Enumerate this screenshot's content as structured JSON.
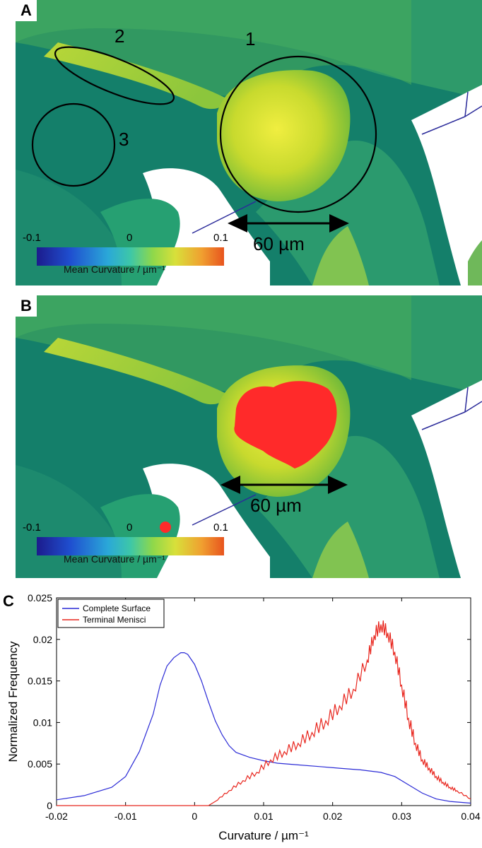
{
  "panel_a": {
    "letter": "A",
    "labels": {
      "one": "1",
      "two": "2",
      "three": "3"
    },
    "scale_bar": "60 µm",
    "colorbar": {
      "min": "-0.1",
      "mid": "0",
      "max": "0.1",
      "title": "Mean Curvature / µm⁻¹"
    }
  },
  "panel_b": {
    "letter": "B",
    "scale_bar": "60 µm",
    "colorbar": {
      "min": "-0.1",
      "mid": "0",
      "max": "0.1",
      "title": "Mean Curvature / µm⁻¹"
    }
  },
  "panel_c": {
    "letter": "C"
  },
  "colors": {
    "complete_surface": "#2b2bd6",
    "terminal_menisci": "#e8261e",
    "meniscus_highlight": "#ff2a2a"
  },
  "chart_data": {
    "type": "line",
    "xlabel": "Curvature / µm⁻¹",
    "ylabel": "Normalized Frequency",
    "xlim": [
      -0.02,
      0.04
    ],
    "ylim": [
      0,
      0.025
    ],
    "xticks": [
      "-0.02",
      "-0.01",
      "0",
      "0.01",
      "0.02",
      "0.03",
      "0.04"
    ],
    "yticks": [
      "0",
      "0.005",
      "0.01",
      "0.015",
      "0.02",
      "0.025"
    ],
    "legend": "top-left",
    "grid": false,
    "series": [
      {
        "name": "Complete Surface",
        "color": "#2b2bd6",
        "x": [
          -0.02,
          -0.016,
          -0.012,
          -0.01,
          -0.008,
          -0.006,
          -0.005,
          -0.004,
          -0.003,
          -0.002,
          -0.0015,
          -0.001,
          0.0,
          0.001,
          0.002,
          0.003,
          0.004,
          0.005,
          0.006,
          0.008,
          0.01,
          0.012,
          0.015,
          0.018,
          0.021,
          0.024,
          0.027,
          0.029,
          0.031,
          0.033,
          0.035,
          0.037,
          0.04
        ],
        "y": [
          0.0007,
          0.0012,
          0.0022,
          0.0035,
          0.0065,
          0.011,
          0.0145,
          0.0168,
          0.0178,
          0.0184,
          0.0184,
          0.0182,
          0.017,
          0.015,
          0.0125,
          0.0102,
          0.0085,
          0.0072,
          0.0064,
          0.0058,
          0.0054,
          0.0051,
          0.0049,
          0.0047,
          0.0045,
          0.0043,
          0.004,
          0.0035,
          0.0025,
          0.0015,
          0.0008,
          0.0005,
          0.0003
        ]
      },
      {
        "name": "Terminal Menisci",
        "color": "#e8261e",
        "x": [
          -0.02,
          -0.01,
          0.0,
          0.002,
          0.003,
          0.005,
          0.007,
          0.009,
          0.011,
          0.013,
          0.015,
          0.017,
          0.019,
          0.021,
          0.023,
          0.025,
          0.026,
          0.027,
          0.028,
          0.029,
          0.03,
          0.031,
          0.032,
          0.033,
          0.034,
          0.035,
          0.036,
          0.037,
          0.038,
          0.04
        ],
        "y": [
          0,
          0,
          0,
          0,
          0.0005,
          0.0018,
          0.003,
          0.004,
          0.0055,
          0.0065,
          0.0075,
          0.0088,
          0.0102,
          0.012,
          0.014,
          0.0175,
          0.0205,
          0.0218,
          0.0208,
          0.0185,
          0.0145,
          0.0105,
          0.0075,
          0.0055,
          0.0045,
          0.0035,
          0.0028,
          0.0022,
          0.0018,
          0.0008
        ]
      }
    ]
  }
}
